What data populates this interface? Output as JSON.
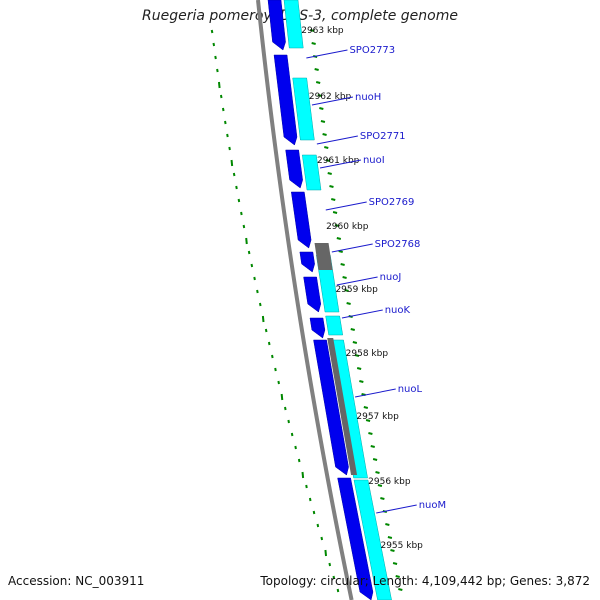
{
  "title": "Ruegeria pomeroyi DSS-3, complete genome",
  "footer": {
    "accession": "Accession: NC_003911",
    "summary": "Topology: circular; Length: 4,109,442 bp; Genes: 3,872"
  },
  "colors": {
    "forward_cds": "#0000ee",
    "reverse_cds": "#00ffff",
    "other_feature": "#666666",
    "backbone": "#808080",
    "ticks": "#008800",
    "label_text": "#1a1acc"
  },
  "kbp_labels": [
    "2963 kbp",
    "2962 kbp",
    "2961 kbp",
    "2960 kbp",
    "2959 kbp",
    "2958 kbp",
    "2957 kbp",
    "2956 kbp",
    "2955 kbp"
  ],
  "gene_labels": [
    "SPO2773",
    "nuoH",
    "SPO2771",
    "nuoI",
    "SPO2769",
    "SPO2768",
    "nuoJ",
    "nuoK",
    "nuoL",
    "nuoM"
  ]
}
